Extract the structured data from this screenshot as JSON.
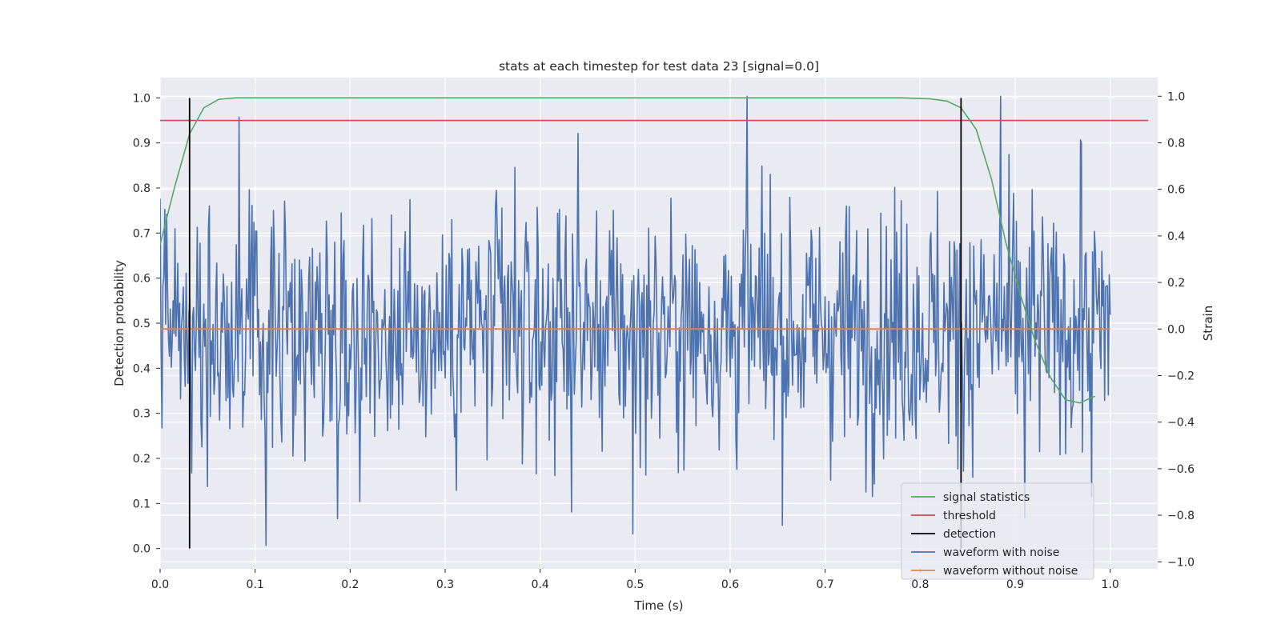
{
  "chart_data": {
    "type": "line",
    "title": "stats at each timestep for test data 23 [signal=0.0]",
    "xlabel": "Time (s)",
    "ylabel": "Detection probability",
    "ylabel_right": "Strain",
    "xlim": [
      0.0,
      1.05
    ],
    "ylim": [
      -0.045,
      1.045
    ],
    "ylim_right": [
      -1.03,
      1.08
    ],
    "x_ticks": [
      0.0,
      0.1,
      0.2,
      0.3,
      0.4,
      0.5,
      0.6,
      0.7,
      0.8,
      0.9,
      1.0
    ],
    "x_tick_labels": [
      "0.0",
      "0.1",
      "0.2",
      "0.3",
      "0.4",
      "0.5",
      "0.6",
      "0.7",
      "0.8",
      "0.9",
      "1.0"
    ],
    "y_ticks": [
      0.0,
      0.1,
      0.2,
      0.3,
      0.4,
      0.5,
      0.6,
      0.7,
      0.8,
      0.9,
      1.0
    ],
    "y_tick_labels": [
      "0.0",
      "0.1",
      "0.2",
      "0.3",
      "0.4",
      "0.5",
      "0.6",
      "0.7",
      "0.8",
      "0.9",
      "1.0"
    ],
    "y_ticks_right": [
      -1.0,
      -0.8,
      -0.6,
      -0.4,
      -0.2,
      0.0,
      0.2,
      0.4,
      0.6,
      0.8,
      1.0
    ],
    "y_tick_labels_right": [
      "−1.0",
      "−0.8",
      "−0.6",
      "−0.4",
      "−0.2",
      "0.0",
      "0.2",
      "0.4",
      "0.6",
      "0.8",
      "1.0"
    ],
    "grid": true,
    "legend_position": "bottom-right",
    "colors": {
      "signal_statistics": "#55a868",
      "threshold": "#c44e52",
      "detection": "#000000",
      "waveform_with_noise": "#4c72b0",
      "waveform_without_noise": "#dd8452",
      "plot_background": "#eaeaf2",
      "grid": "#ffffff"
    },
    "legend": [
      {
        "key": "signal_statistics",
        "label": "signal statistics"
      },
      {
        "key": "threshold",
        "label": "threshold"
      },
      {
        "key": "detection",
        "label": "detection"
      },
      {
        "key": "waveform_with_noise",
        "label": "waveform with noise"
      },
      {
        "key": "waveform_without_noise",
        "label": "waveform without noise"
      }
    ],
    "series": {
      "signal_statistics": {
        "axis": "left",
        "x": [
          0.0,
          0.015,
          0.031,
          0.046,
          0.062,
          0.08,
          0.1,
          0.2,
          0.3,
          0.4,
          0.5,
          0.6,
          0.7,
          0.78,
          0.81,
          0.828,
          0.843,
          0.859,
          0.875,
          0.89,
          0.906,
          0.921,
          0.937,
          0.953,
          0.968,
          0.984
        ],
        "values": [
          0.675,
          0.8,
          0.92,
          0.978,
          0.997,
          1.0,
          1.0,
          1.0,
          1.0,
          1.0,
          1.0,
          1.0,
          1.0,
          1.0,
          0.998,
          0.993,
          0.978,
          0.93,
          0.82,
          0.68,
          0.56,
          0.46,
          0.38,
          0.33,
          0.323,
          0.338
        ]
      },
      "threshold": {
        "axis": "left",
        "x": [
          0.0,
          1.04
        ],
        "values": [
          0.95,
          0.95
        ]
      },
      "detection": {
        "axis": "left",
        "x": [
          0.031,
          0.843
        ],
        "y_from": 0.0,
        "y_to": 1.0
      },
      "waveform_without_noise": {
        "axis": "right",
        "x": [
          0.0,
          1.0
        ],
        "values": [
          0.0,
          0.0
        ]
      },
      "waveform_with_noise": {
        "axis": "right",
        "x_start": 0.0,
        "x_end": 1.0,
        "n_points": 1024,
        "std": 0.3,
        "peaks": [
          [
            0.0,
            0.56
          ],
          [
            0.083,
            0.91
          ],
          [
            0.111,
            -0.93
          ],
          [
            0.44,
            0.84
          ],
          [
            0.498,
            -0.88
          ],
          [
            0.618,
            1.0
          ],
          [
            0.885,
            1.0
          ],
          [
            0.91,
            -0.81
          ],
          [
            0.97,
            0.8
          ],
          [
            0.98,
            -0.72
          ]
        ]
      }
    }
  }
}
